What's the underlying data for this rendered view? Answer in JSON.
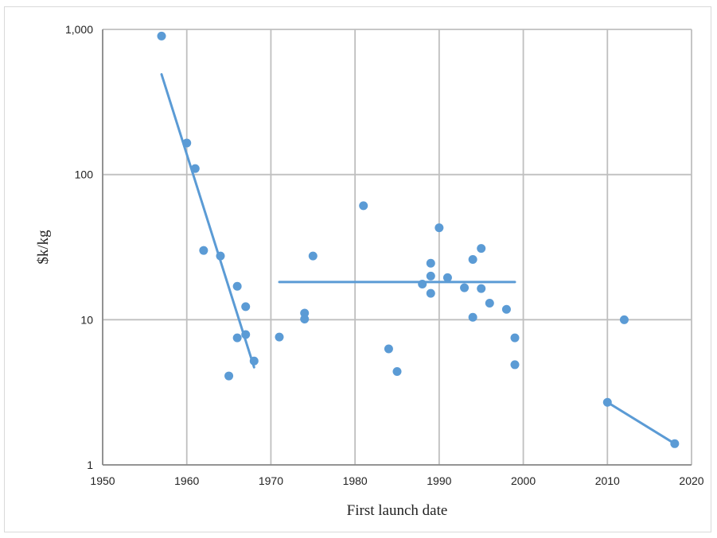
{
  "chart_data": {
    "type": "scatter",
    "title": "",
    "xlabel": "First launch date",
    "ylabel": "$k/kg",
    "xlim": [
      1950,
      2020
    ],
    "ylim": [
      1,
      1000
    ],
    "y_scale": "log",
    "grid": true,
    "x_ticks": [
      "1950",
      "1960",
      "1970",
      "1980",
      "1990",
      "2000",
      "2010",
      "2020"
    ],
    "y_ticks": [
      "1",
      "10",
      "100",
      "1,000"
    ],
    "colors": {
      "series": "#5b9bd5",
      "grid": "#bfbfbf",
      "axis": "#808080"
    },
    "series": [
      {
        "type": "scatter",
        "points": [
          [
            1957,
            900
          ],
          [
            1960,
            165
          ],
          [
            1961,
            110
          ],
          [
            1962,
            30
          ],
          [
            1964,
            27.5
          ],
          [
            1965,
            4.1
          ],
          [
            1966,
            17
          ],
          [
            1966,
            7.5
          ],
          [
            1967,
            12.3
          ],
          [
            1967,
            7.9
          ],
          [
            1968,
            5.2
          ],
          [
            1971,
            7.6
          ],
          [
            1974,
            11.1
          ],
          [
            1974,
            10.1
          ],
          [
            1975,
            27.5
          ],
          [
            1981,
            61
          ],
          [
            1984,
            6.3
          ],
          [
            1985,
            4.4
          ],
          [
            1988,
            17.6
          ],
          [
            1989,
            24.5
          ],
          [
            1989,
            20
          ],
          [
            1989,
            15.2
          ],
          [
            1990,
            43
          ],
          [
            1991,
            19.5
          ],
          [
            1993,
            16.6
          ],
          [
            1994,
            26
          ],
          [
            1994,
            10.4
          ],
          [
            1995,
            31
          ],
          [
            1995,
            16.4
          ],
          [
            1996,
            13
          ],
          [
            1998,
            11.8
          ],
          [
            1999,
            7.5
          ],
          [
            1999,
            4.9
          ],
          [
            2010,
            2.7
          ],
          [
            2012,
            10
          ],
          [
            2018,
            1.4
          ]
        ]
      },
      {
        "type": "line",
        "points": [
          [
            1957,
            490
          ],
          [
            1968,
            4.7
          ]
        ]
      },
      {
        "type": "line",
        "points": [
          [
            1971,
            18.2
          ],
          [
            1999,
            18.2
          ]
        ]
      },
      {
        "type": "line",
        "points": [
          [
            2010,
            2.7
          ],
          [
            2018,
            1.4
          ]
        ]
      }
    ]
  }
}
